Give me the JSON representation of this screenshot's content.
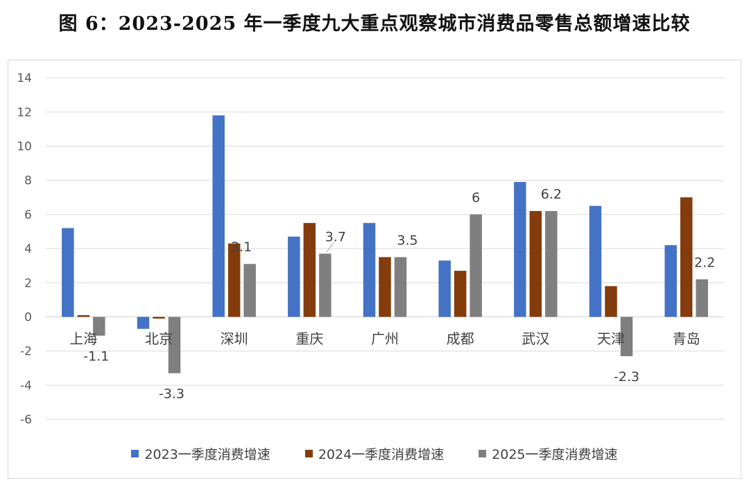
{
  "title": "图 6：2023-2025 年一季度九大重点观察城市消费品零售总额增速比较",
  "chart_data": {
    "type": "bar",
    "categories": [
      "上海",
      "北京",
      "深圳",
      "重庆",
      "广州",
      "成都",
      "武汉",
      "天津",
      "青岛"
    ],
    "series": [
      {
        "name": "2023一季度消费增速",
        "color": "#4472c4",
        "values": [
          5.2,
          -0.7,
          11.8,
          4.7,
          5.5,
          3.3,
          7.9,
          6.5,
          4.2
        ]
      },
      {
        "name": "2024一季度消费增速",
        "color": "#843c0c",
        "values": [
          0.1,
          -0.1,
          4.3,
          5.5,
          3.5,
          2.7,
          6.2,
          1.8,
          7.0
        ]
      },
      {
        "name": "2025一季度消费增速",
        "color": "#7f7f7f",
        "values": [
          -1.1,
          -3.3,
          3.1,
          3.7,
          3.5,
          6.0,
          6.2,
          -2.3,
          2.2
        ]
      }
    ],
    "data_labels": [
      {
        "text": "-1.1"
      },
      {
        "text": "-3.3"
      },
      {
        "text": "3.1"
      },
      {
        "text": "3.7"
      },
      {
        "text": "3.5"
      },
      {
        "text": "6"
      },
      {
        "text": "6.2"
      },
      {
        "text": "-2.3"
      },
      {
        "text": "2.2"
      }
    ],
    "y_ticks": [
      "14",
      "12",
      "10",
      "8",
      "6",
      "4",
      "2",
      "0",
      "-2",
      "-4",
      "-6"
    ],
    "ylim": [
      -6,
      14
    ],
    "grid": true,
    "legend_position": "bottom"
  }
}
